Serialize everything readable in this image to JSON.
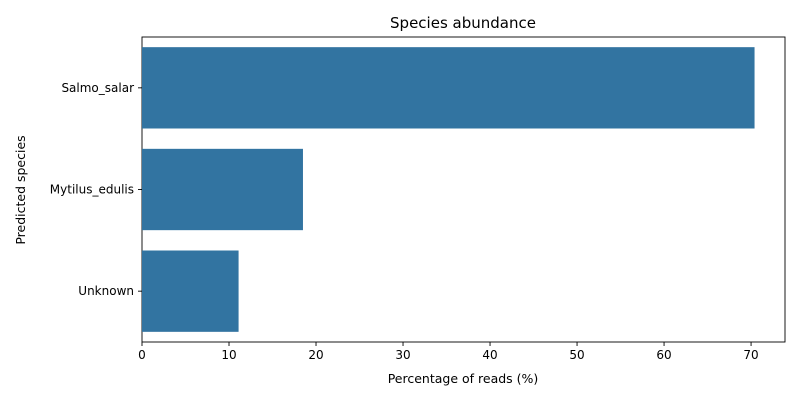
{
  "chart_data": {
    "type": "bar",
    "orientation": "horizontal",
    "title": "Species abundance",
    "xlabel": "Percentage of reads (%)",
    "ylabel": "Predicted species",
    "categories": [
      "Salmo_salar",
      "Mytilus_edulis",
      "Unknown"
    ],
    "values": [
      70.4,
      18.5,
      11.1
    ],
    "xlim": [
      0,
      73.9
    ],
    "xticks": [
      0,
      10,
      20,
      30,
      40,
      50,
      60,
      70
    ],
    "grid": false,
    "legend": "none",
    "bar_color": "#3274a1"
  }
}
